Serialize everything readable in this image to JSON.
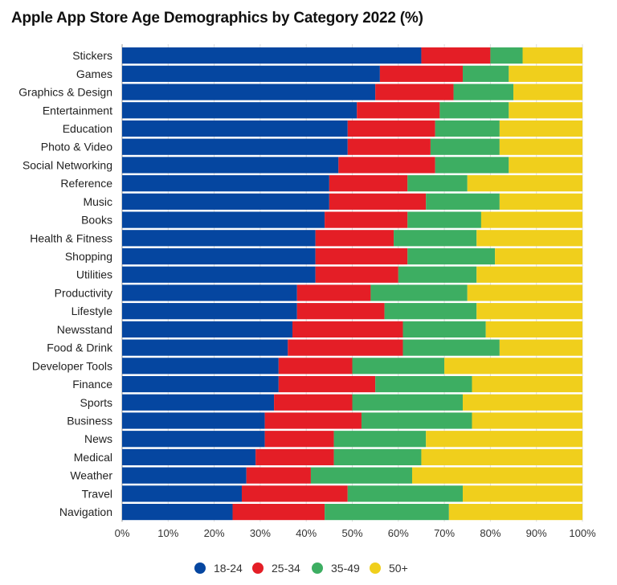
{
  "chart_data": {
    "type": "bar",
    "orientation": "horizontal",
    "stacked": true,
    "title": "Apple App Store Age Demographics by Category 2022 (%)",
    "xlabel": "",
    "ylabel": "",
    "xlim": [
      0,
      100
    ],
    "x_ticks": [
      "0%",
      "10%",
      "20%",
      "30%",
      "40%",
      "50%",
      "60%",
      "70%",
      "80%",
      "90%",
      "100%"
    ],
    "grid": true,
    "legend_position": "bottom",
    "categories": [
      "Stickers",
      "Games",
      "Graphics & Design",
      "Entertainment",
      "Education",
      "Photo & Video",
      "Social Networking",
      "Reference",
      "Music",
      "Books",
      "Health & Fitness",
      "Shopping",
      "Utilities",
      "Productivity",
      "Lifestyle",
      "Newsstand",
      "Food & Drink",
      "Developer Tools",
      "Finance",
      "Sports",
      "Business",
      "News",
      "Medical",
      "Weather",
      "Travel",
      "Navigation"
    ],
    "series": [
      {
        "name": "18-24",
        "color": "#0546a0",
        "values": [
          65,
          56,
          55,
          51,
          49,
          49,
          47,
          45,
          45,
          44,
          42,
          42,
          42,
          38,
          38,
          37,
          36,
          34,
          34,
          33,
          31,
          31,
          29,
          27,
          26,
          24
        ]
      },
      {
        "name": "25-34",
        "color": "#e41e26",
        "values": [
          15,
          18,
          17,
          18,
          19,
          18,
          21,
          17,
          21,
          18,
          17,
          20,
          18,
          16,
          19,
          24,
          25,
          16,
          21,
          17,
          21,
          15,
          17,
          14,
          23,
          20
        ]
      },
      {
        "name": "35-49",
        "color": "#3dae62",
        "values": [
          7,
          10,
          13,
          15,
          14,
          15,
          16,
          13,
          16,
          16,
          18,
          19,
          17,
          21,
          20,
          18,
          21,
          20,
          21,
          24,
          24,
          20,
          19,
          22,
          25,
          27
        ]
      },
      {
        "name": "50+",
        "color": "#f0cf1c",
        "values": [
          13,
          16,
          15,
          16,
          18,
          18,
          16,
          25,
          18,
          22,
          23,
          19,
          23,
          25,
          23,
          21,
          18,
          30,
          24,
          26,
          24,
          34,
          35,
          37,
          26,
          29
        ]
      }
    ]
  }
}
